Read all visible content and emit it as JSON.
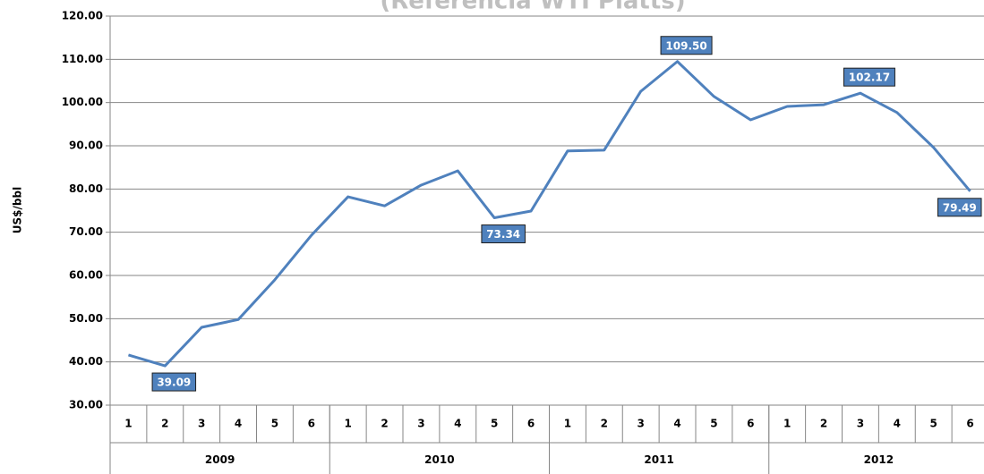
{
  "chart_data": {
    "type": "line",
    "title": "(Referencia WTI Platts)",
    "y_label": "US$/bbl",
    "categories": [
      "1",
      "2",
      "3",
      "4",
      "5",
      "6",
      "1",
      "2",
      "3",
      "4",
      "5",
      "6",
      "1",
      "2",
      "3",
      "4",
      "5",
      "6",
      "1",
      "2",
      "3",
      "4",
      "5",
      "6"
    ],
    "category_groups": [
      "2009",
      "2010",
      "2011",
      "2012"
    ],
    "series": [
      {
        "name": "WTI",
        "color": "#4f81bd",
        "values": [
          41.6,
          39.09,
          48.0,
          49.8,
          59.0,
          69.3,
          78.2,
          76.1,
          80.9,
          84.2,
          73.34,
          74.9,
          88.8,
          89.0,
          102.6,
          109.5,
          101.4,
          96.0,
          99.1,
          99.5,
          102.17,
          97.7,
          89.6,
          79.49
        ],
        "value_labels": [
          null,
          "39.09",
          null,
          null,
          null,
          null,
          null,
          null,
          null,
          null,
          "73.34",
          null,
          null,
          null,
          null,
          "109.50",
          null,
          null,
          null,
          null,
          "102.17",
          null,
          null,
          "79.49"
        ]
      }
    ],
    "ylim": [
      30,
      120
    ],
    "yticks": [
      {
        "value": 30,
        "label": "30.00"
      },
      {
        "value": 40,
        "label": "40.00"
      },
      {
        "value": 50,
        "label": "50.00"
      },
      {
        "value": 60,
        "label": "60.00"
      },
      {
        "value": 70,
        "label": "70.00"
      },
      {
        "value": 80,
        "label": "80.00"
      },
      {
        "value": 90,
        "label": "90.00"
      },
      {
        "value": 100,
        "label": "100.00"
      },
      {
        "value": 110,
        "label": "110.00"
      },
      {
        "value": 120,
        "label": "120.00"
      }
    ],
    "grid": true
  }
}
